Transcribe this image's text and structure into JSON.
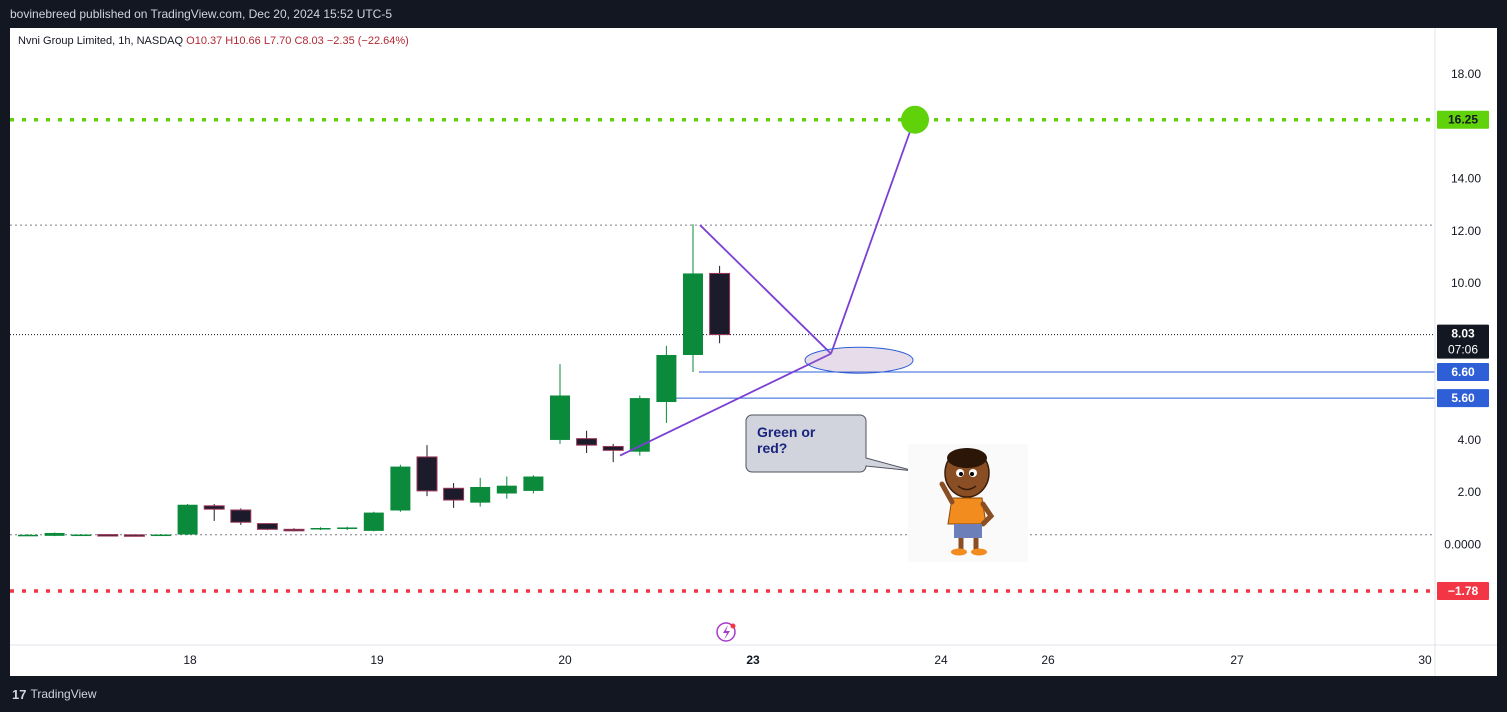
{
  "header": {
    "publisher_line": "bovinebreed published on TradingView.com, Dec 20, 2024 15:52 UTC-5"
  },
  "footer": {
    "brand": "TradingView",
    "logo_glyph": "17"
  },
  "legend": {
    "symbol": "Nvni Group Limited, 1h, NASDAQ",
    "open": "O10.37",
    "high": "H10.66",
    "low": "L7.70",
    "close": "C8.03",
    "change": "−2.35 (−22.64%)"
  },
  "colors": {
    "up": "#089981",
    "up_fill": "#0a8a3a",
    "down_fill": "#1c1b2b",
    "target_green": "#5fd20a",
    "stop_red": "#f23645",
    "path_line": "#7b3fd6",
    "level_blue": "#2f5fd6"
  },
  "chart_data": {
    "type": "candlestick",
    "y_axis": {
      "ticks": [
        "18.00",
        "14.00",
        "12.00",
        "10.00",
        "4.00",
        "2.00",
        "0.0000"
      ],
      "range": [
        -3.5,
        20.2
      ]
    },
    "x_axis": {
      "ticks": [
        "18",
        "19",
        "20",
        "23",
        "24",
        "26",
        "27",
        "30"
      ]
    },
    "candles": [
      {
        "o": 0.36,
        "h": 0.4,
        "l": 0.34,
        "c": 0.37
      },
      {
        "o": 0.33,
        "h": 0.46,
        "l": 0.32,
        "c": 0.44
      },
      {
        "o": 0.37,
        "h": 0.4,
        "l": 0.35,
        "c": 0.38
      },
      {
        "o": 0.38,
        "h": 0.4,
        "l": 0.36,
        "c": 0.37
      },
      {
        "o": 0.37,
        "h": 0.39,
        "l": 0.35,
        "c": 0.36
      },
      {
        "o": 0.35,
        "h": 0.4,
        "l": 0.33,
        "c": 0.38
      },
      {
        "o": 0.38,
        "h": 1.55,
        "l": 0.36,
        "c": 1.52
      },
      {
        "o": 1.48,
        "h": 1.55,
        "l": 0.9,
        "c": 1.35
      },
      {
        "o": 1.32,
        "h": 1.38,
        "l": 0.75,
        "c": 0.85
      },
      {
        "o": 0.8,
        "h": 0.82,
        "l": 0.55,
        "c": 0.58
      },
      {
        "o": 0.58,
        "h": 0.62,
        "l": 0.5,
        "c": 0.55
      },
      {
        "o": 0.58,
        "h": 0.66,
        "l": 0.55,
        "c": 0.63
      },
      {
        "o": 0.6,
        "h": 0.68,
        "l": 0.55,
        "c": 0.65
      },
      {
        "o": 0.52,
        "h": 1.25,
        "l": 0.5,
        "c": 1.22
      },
      {
        "o": 1.3,
        "h": 3.05,
        "l": 1.25,
        "c": 2.98
      },
      {
        "o": 3.35,
        "h": 3.8,
        "l": 1.85,
        "c": 2.05
      },
      {
        "o": 2.15,
        "h": 2.35,
        "l": 1.4,
        "c": 1.7
      },
      {
        "o": 1.6,
        "h": 2.55,
        "l": 1.45,
        "c": 2.2
      },
      {
        "o": 1.95,
        "h": 2.6,
        "l": 1.75,
        "c": 2.25
      },
      {
        "o": 2.05,
        "h": 2.65,
        "l": 1.95,
        "c": 2.6
      },
      {
        "o": 4.0,
        "h": 6.9,
        "l": 3.85,
        "c": 5.7
      },
      {
        "o": 4.05,
        "h": 4.35,
        "l": 3.5,
        "c": 3.8
      },
      {
        "o": 3.75,
        "h": 3.85,
        "l": 3.15,
        "c": 3.6
      },
      {
        "o": 3.55,
        "h": 5.7,
        "l": 3.4,
        "c": 5.6
      },
      {
        "o": 5.45,
        "h": 7.6,
        "l": 4.65,
        "c": 7.25
      },
      {
        "o": 7.25,
        "h": 12.25,
        "l": 6.6,
        "c": 10.37
      },
      {
        "o": 10.37,
        "h": 10.66,
        "l": 7.7,
        "c": 8.03
      }
    ],
    "levels": [
      {
        "name": "target",
        "value": 16.25,
        "label": "16.25",
        "style": "dotted-green"
      },
      {
        "name": "resistance",
        "value": 12.22,
        "style": "dotted-gray"
      },
      {
        "name": "current",
        "value": 8.03,
        "label": "8.03",
        "sublabel": "07:06",
        "style": "dotted-black"
      },
      {
        "name": "support-1",
        "value": 6.6,
        "label": "6.60",
        "style": "solid-blue"
      },
      {
        "name": "support-2",
        "value": 5.6,
        "label": "5.60",
        "style": "solid-blue"
      },
      {
        "name": "base",
        "value": 0.37,
        "style": "dotted-gray"
      },
      {
        "name": "stop",
        "value": -1.78,
        "label": "−1.78",
        "style": "dotted-red"
      }
    ],
    "annotation": {
      "text_line1": "Green or",
      "text_line2": "red?"
    }
  }
}
